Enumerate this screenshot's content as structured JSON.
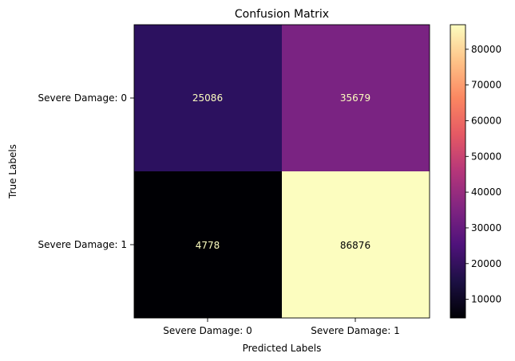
{
  "chart_data": {
    "type": "heatmap",
    "title": "Confusion Matrix",
    "xlabel": "Predicted Labels",
    "ylabel": "True Labels",
    "x_categories": [
      "Severe Damage: 0",
      "Severe Damage: 1"
    ],
    "y_categories": [
      "Severe Damage: 0",
      "Severe Damage: 1"
    ],
    "values": [
      [
        25086,
        35679
      ],
      [
        4778,
        86876
      ]
    ],
    "colormap": "magma",
    "colorbar": {
      "ticks": [
        10000,
        20000,
        30000,
        40000,
        50000,
        60000,
        70000,
        80000
      ],
      "tick_labels": [
        "10000",
        "20000",
        "30000",
        "40000",
        "50000",
        "60000",
        "70000",
        "80000"
      ]
    },
    "cell_colors": [
      [
        "#2c115f",
        "#7a2382"
      ],
      [
        "#000004",
        "#fcfdbf"
      ]
    ],
    "value_text_colors": [
      [
        "#fcfdbf",
        "#fcfdbf"
      ],
      [
        "#fcfdbf",
        "#000004"
      ]
    ]
  }
}
